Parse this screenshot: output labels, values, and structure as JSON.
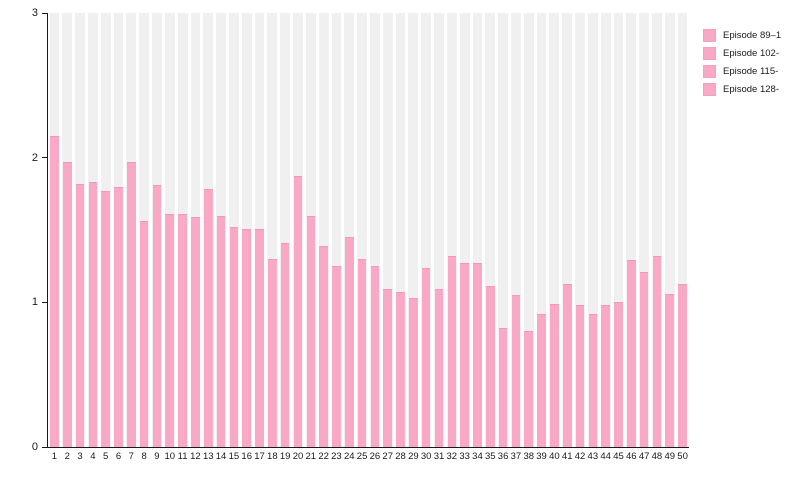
{
  "chart_data": {
    "type": "bar",
    "title": "",
    "xlabel": "",
    "ylabel": "",
    "categories": [
      "1",
      "2",
      "3",
      "4",
      "5",
      "6",
      "7",
      "8",
      "9",
      "10",
      "11",
      "12",
      "13",
      "14",
      "15",
      "16",
      "17",
      "18",
      "19",
      "20",
      "21",
      "22",
      "23",
      "24",
      "25",
      "26",
      "27",
      "28",
      "29",
      "30",
      "31",
      "32",
      "33",
      "34",
      "35",
      "36",
      "37",
      "38",
      "39",
      "40",
      "41",
      "42",
      "43",
      "44",
      "45",
      "46",
      "47",
      "48",
      "49",
      "50"
    ],
    "values": [
      2.15,
      1.97,
      1.82,
      1.83,
      1.77,
      1.8,
      1.97,
      1.56,
      1.81,
      1.61,
      1.61,
      1.59,
      1.78,
      1.6,
      1.52,
      1.51,
      1.51,
      1.3,
      1.41,
      1.87,
      1.6,
      1.39,
      1.25,
      1.45,
      1.3,
      1.25,
      1.09,
      1.07,
      1.03,
      1.24,
      1.09,
      1.32,
      1.27,
      1.27,
      1.11,
      0.82,
      1.05,
      0.8,
      0.92,
      0.99,
      1.13,
      0.98,
      0.92,
      0.98,
      1.0,
      1.29,
      1.21,
      1.32,
      1.06,
      1.13
    ],
    "ylim": [
      0,
      3
    ],
    "yticks": [
      "0",
      "1",
      "2",
      "3"
    ],
    "grid": "off",
    "legend_position": "top-right",
    "bar_color": "#f9a8c5",
    "bar_cap_color": "#f596ba",
    "background_bar_color": "#f0f0f0",
    "legend": {
      "items": [
        {
          "label": "Episode 89–1",
          "color": "#f9a8c5"
        },
        {
          "label": "Episode 102-",
          "color": "#f9a8c5"
        },
        {
          "label": "Episode 115-",
          "color": "#f9a8c5"
        },
        {
          "label": "Episode 128-",
          "color": "#f9a8c5"
        }
      ]
    }
  }
}
